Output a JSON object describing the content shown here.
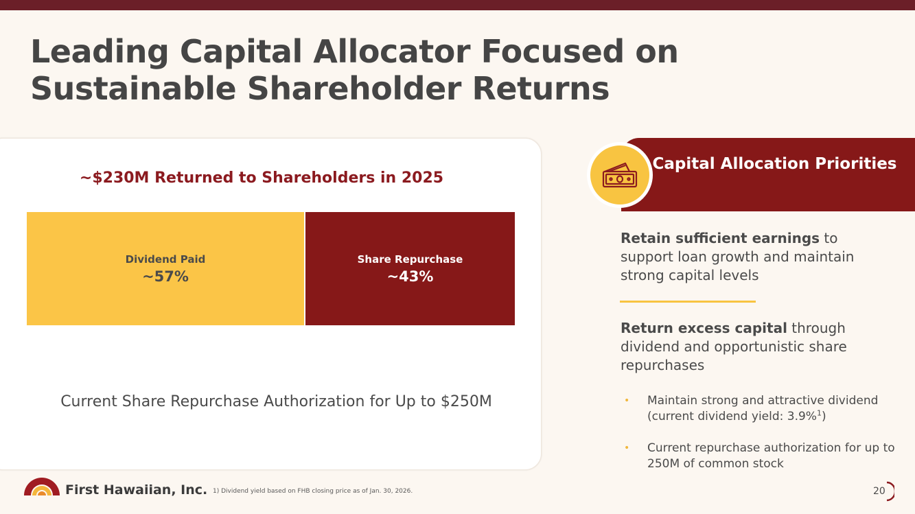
{
  "header": {
    "title_line1": "Leading Capital Allocator Focused on",
    "title_line2": "Sustainable Shareholder Returns"
  },
  "card": {
    "heading": "~$230M Returned to Shareholders in 2025",
    "segments": [
      {
        "label": "Dividend Paid",
        "value": "~57%",
        "share": 0.57,
        "color": "#fbc547"
      },
      {
        "label": "Share Repurchase",
        "value": "~43%",
        "share": 0.43,
        "color": "#861818"
      }
    ],
    "footer": "Current Share Repurchase Authorization for Up to $250M"
  },
  "priorities": {
    "title": "Capital Allocation Priorities",
    "icon": "money-bill-icon",
    "item1_bold": "Retain sufficient earnings",
    "item1_rest": " to support loan growth and maintain strong capital levels",
    "item2_bold": "Return excess capital",
    "item2_rest": " through dividend and opportunistic share repurchases",
    "bullet1": "Maintain strong and attractive dividend (current dividend yield: 3.9%",
    "bullet1_sup": "1",
    "bullet1_end": ")",
    "bullet2": "Current repurchase authorization for up to 250M of common stock"
  },
  "footer": {
    "brand": "First Hawaiian, Inc.",
    "footnote": "1) Dividend yield based on FHB closing price as of Jan. 30, 2026.",
    "page_number": "20"
  },
  "colors": {
    "maroon": "#861818",
    "gold": "#fbc547",
    "top_bar": "#6b1f28",
    "background": "#fcf7f1"
  }
}
